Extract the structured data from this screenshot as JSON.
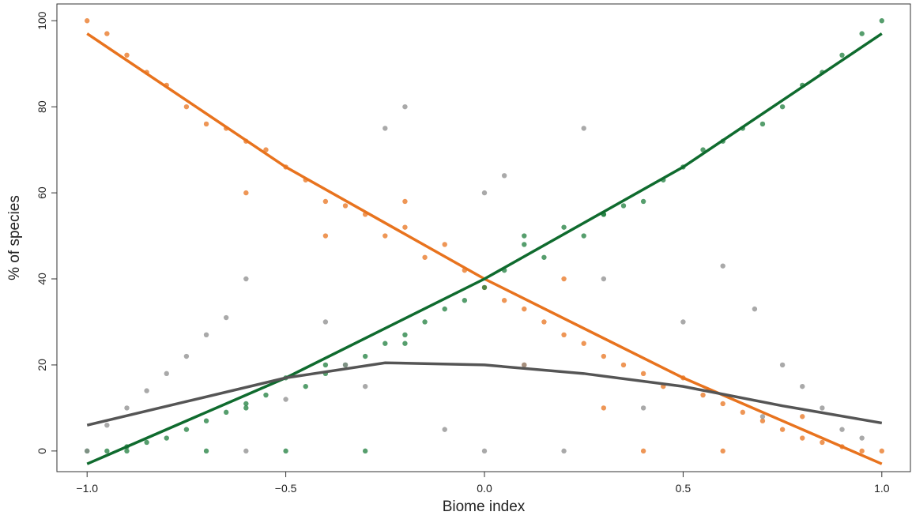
{
  "chart_data": {
    "type": "scatter",
    "x_label": "Biome index",
    "y_label": "% of species",
    "xlim": [
      -1.076,
      1.072
    ],
    "ylim": [
      -4.8,
      103.9
    ],
    "xticks": [
      {
        "value": -1,
        "label": "−1.0"
      },
      {
        "value": -0.5,
        "label": "−0.5"
      },
      {
        "value": 0,
        "label": "0.0"
      },
      {
        "value": 0.5,
        "label": "0.5"
      },
      {
        "value": 1,
        "label": "1.0"
      }
    ],
    "yticks": [
      0,
      20,
      40,
      60,
      80,
      100
    ],
    "grid": false,
    "series": [
      {
        "color": "#e8731e",
        "x": [
          -1,
          -0.95,
          -0.9,
          -0.85,
          -0.8,
          -0.75,
          -0.7,
          -0.65,
          -0.6,
          -0.55,
          -0.5,
          -0.45,
          -0.4,
          -0.35,
          -0.3,
          -0.25,
          -0.2,
          -0.15,
          -0.1,
          -0.05,
          0,
          0.05,
          0.1,
          0.15,
          0.2,
          0.25,
          0.3,
          0.35,
          0.4,
          0.45,
          0.5,
          0.55,
          0.6,
          0.65,
          0.7,
          0.75,
          0.8,
          0.85,
          0.9,
          0.95,
          1,
          -0.4,
          -0.6,
          0.2,
          0.4,
          0.6,
          -0.2,
          0.1,
          0.3,
          0.8
        ],
        "values": [
          100,
          97,
          92,
          88,
          85,
          80,
          76,
          75,
          72,
          70,
          66,
          63,
          58,
          57,
          55,
          50,
          52,
          45,
          48,
          42,
          38,
          35,
          33,
          30,
          27,
          25,
          22,
          20,
          18,
          15,
          17,
          13,
          11,
          9,
          7,
          5,
          3,
          2,
          1,
          0,
          0,
          50,
          60,
          40,
          0,
          0,
          58,
          20,
          10,
          8
        ]
      },
      {
        "color": "#1e7d3c",
        "x": [
          1,
          0.95,
          0.9,
          0.85,
          0.8,
          0.75,
          0.7,
          0.65,
          0.6,
          0.55,
          0.5,
          0.45,
          0.4,
          0.35,
          0.3,
          0.25,
          0.2,
          0.15,
          0.1,
          0.05,
          0,
          -0.05,
          -0.1,
          -0.15,
          -0.2,
          -0.25,
          -0.3,
          -0.35,
          -0.4,
          -0.45,
          -0.5,
          -0.55,
          -0.6,
          -0.65,
          -0.7,
          -0.75,
          -0.8,
          -0.85,
          -0.9,
          -0.95,
          -1,
          -0.9,
          -0.7,
          -0.5,
          -0.3,
          -0.6,
          -0.4,
          -0.2,
          0.1,
          0.3
        ],
        "values": [
          100,
          97,
          92,
          88,
          85,
          80,
          76,
          75,
          72,
          70,
          66,
          63,
          58,
          57,
          55,
          50,
          52,
          45,
          48,
          42,
          38,
          35,
          33,
          30,
          27,
          25,
          22,
          20,
          18,
          15,
          17,
          13,
          11,
          9,
          7,
          5,
          3,
          2,
          1,
          0,
          0,
          0,
          0,
          0,
          0,
          10,
          20,
          25,
          50,
          55
        ]
      },
      {
        "color": "#8c8c8c",
        "x": [
          -0.95,
          -0.9,
          -0.85,
          -0.8,
          -0.75,
          -0.7,
          -0.65,
          -0.6,
          -0.5,
          -0.4,
          -0.3,
          -0.2,
          -0.25,
          -0.1,
          0,
          0,
          0.05,
          0.1,
          0.2,
          0.25,
          0.3,
          0.4,
          0.5,
          0.6,
          0.68,
          0.75,
          0.8,
          0.85,
          0.9,
          0.95,
          -1,
          -0.6,
          0.7,
          -0.35
        ],
        "values": [
          6,
          10,
          14,
          18,
          22,
          27,
          31,
          40,
          12,
          30,
          15,
          80,
          75,
          5,
          0,
          60,
          64,
          20,
          0,
          75,
          40,
          10,
          30,
          43,
          33,
          20,
          15,
          10,
          5,
          3,
          0,
          0,
          8,
          20
        ]
      }
    ],
    "fits": [
      {
        "color": "#e8731e",
        "x": [
          -1,
          -0.5,
          0,
          0.5,
          1
        ],
        "values": [
          97,
          66,
          40,
          17,
          -3
        ]
      },
      {
        "color": "#0f6b2e",
        "x": [
          -1,
          -0.5,
          0,
          0.5,
          1
        ],
        "values": [
          -3,
          17,
          40,
          66,
          97
        ]
      },
      {
        "color": "#555555",
        "x": [
          -1,
          -0.75,
          -0.5,
          -0.25,
          0,
          0.25,
          0.5,
          0.75,
          1
        ],
        "values": [
          6,
          11.5,
          17,
          20.5,
          20,
          18,
          15,
          10.5,
          6.5
        ]
      }
    ]
  }
}
